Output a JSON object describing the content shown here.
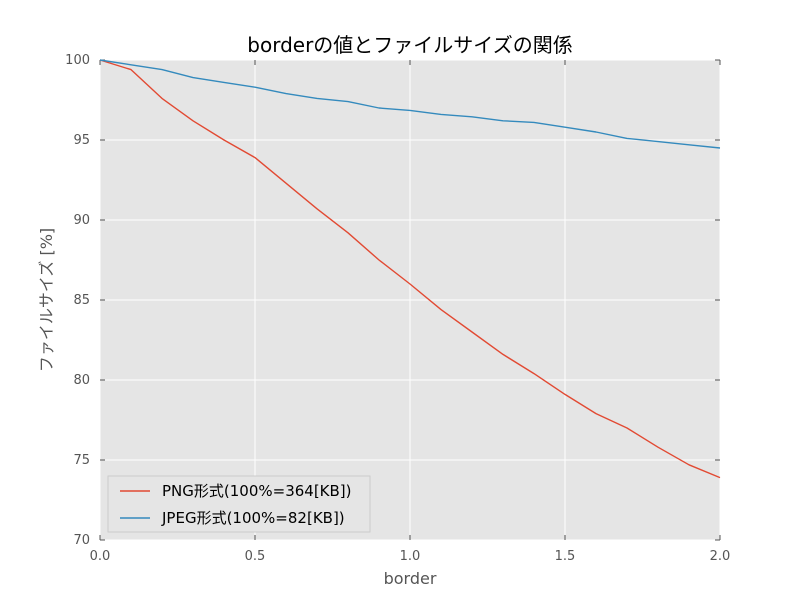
{
  "chart_data": {
    "type": "line",
    "title": "borderの値とファイルサイズの関係",
    "xlabel": "border",
    "ylabel": "ファイルサイズ [%]",
    "xlim": [
      0.0,
      2.0
    ],
    "ylim": [
      70,
      100
    ],
    "xticks": [
      "0.0",
      "0.5",
      "1.0",
      "1.5",
      "2.0"
    ],
    "xtick_values": [
      0.0,
      0.5,
      1.0,
      1.5,
      2.0
    ],
    "yticks": [
      "70",
      "75",
      "80",
      "85",
      "90",
      "95",
      "100"
    ],
    "ytick_values": [
      70,
      75,
      80,
      85,
      90,
      95,
      100
    ],
    "grid": true,
    "legend_position": "bottom-left",
    "background_color": "#e5e5e5",
    "grid_color": "#ffffff",
    "x": [
      0.0,
      0.1,
      0.2,
      0.3,
      0.4,
      0.5,
      0.6,
      0.7,
      0.8,
      0.9,
      1.0,
      1.1,
      1.2,
      1.3,
      1.4,
      1.5,
      1.6,
      1.7,
      1.8,
      1.9,
      2.0
    ],
    "series": [
      {
        "name": "PNG形式(100%=364[KB])",
        "color": "#e24a33",
        "values": [
          100.0,
          99.4,
          97.6,
          96.2,
          95.0,
          93.9,
          92.3,
          90.7,
          89.2,
          87.5,
          86.0,
          84.4,
          83.0,
          81.6,
          80.4,
          79.1,
          77.9,
          77.0,
          75.8,
          74.7,
          73.9
        ]
      },
      {
        "name": "JPEG形式(100%=82[KB])",
        "color": "#348abd",
        "values": [
          100.0,
          99.7,
          99.4,
          98.9,
          98.6,
          98.3,
          97.9,
          97.6,
          97.4,
          97.0,
          96.85,
          96.6,
          96.45,
          96.2,
          96.1,
          95.8,
          95.5,
          95.1,
          94.9,
          94.7,
          94.5
        ]
      }
    ]
  }
}
